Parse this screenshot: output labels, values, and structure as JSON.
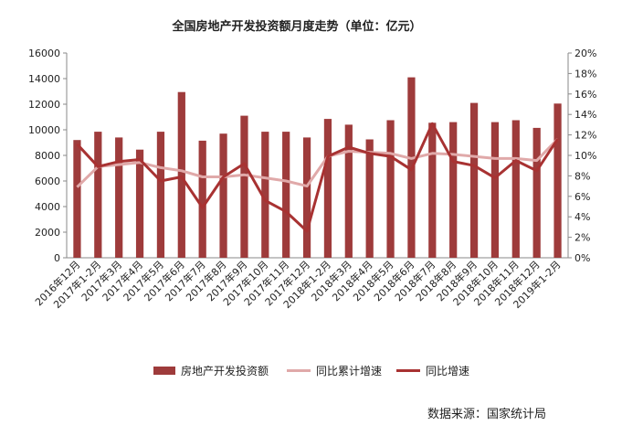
{
  "title": "全国房地产开发投资额月度走势（单位：亿元）",
  "source": "数据来源：国家统计局",
  "colors": {
    "bar": "#9e3b3b",
    "cumulative_line": "#e0a9a9",
    "yoy_line": "#a83232",
    "axis": "#888888"
  },
  "chart_data": {
    "type": "bar",
    "title": "全国房地产开发投资额月度走势（单位：亿元）",
    "categories": [
      "2016年12月",
      "2017年1-2月",
      "2017年3月",
      "2017年4月",
      "2017年5月",
      "2017年6月",
      "2017年7月",
      "2017年8月",
      "2017年9月",
      "2017年10月",
      "2017年11月",
      "2017年12月",
      "2018年1-2月",
      "2018年3月",
      "2018年4月",
      "2018年5月",
      "2018年6月",
      "2018年7月",
      "2018年8月",
      "2018年9月",
      "2018年10月",
      "2018年11月",
      "2018年12月",
      "2019年1-2月"
    ],
    "y_left": {
      "ylim": [
        0,
        16000
      ],
      "ticks": [
        0,
        2000,
        4000,
        6000,
        8000,
        10000,
        12000,
        14000,
        16000
      ]
    },
    "y_right": {
      "ylim": [
        0,
        20
      ],
      "ticks": [
        "0%",
        "2%",
        "4%",
        "6%",
        "8%",
        "10%",
        "12%",
        "14%",
        "16%",
        "18%",
        "20%"
      ]
    },
    "legend_position": "bottom",
    "grid": false,
    "series": [
      {
        "name": "房地产开发投资额",
        "type": "bar",
        "axis": "left",
        "values": [
          9200,
          9850,
          9400,
          8450,
          9850,
          12950,
          9150,
          9700,
          11100,
          9850,
          9850,
          9400,
          10850,
          10400,
          9250,
          10750,
          14100,
          10550,
          10600,
          12100,
          10600,
          10750,
          10150,
          12050
        ]
      },
      {
        "name": "同比累计增速",
        "type": "line",
        "axis": "right",
        "values": [
          6.9,
          8.9,
          9.1,
          9.3,
          8.8,
          8.5,
          7.9,
          7.9,
          8.1,
          7.8,
          7.5,
          7.0,
          9.9,
          10.4,
          10.3,
          10.2,
          9.7,
          10.2,
          10.1,
          9.9,
          9.7,
          9.7,
          9.5,
          11.6
        ]
      },
      {
        "name": "同比增速",
        "type": "line",
        "axis": "right",
        "values": [
          11.1,
          8.9,
          9.4,
          9.6,
          7.5,
          7.9,
          4.9,
          7.9,
          9.2,
          5.6,
          4.5,
          2.6,
          9.9,
          10.8,
          10.2,
          9.9,
          8.6,
          13.1,
          9.4,
          9.0,
          7.8,
          9.5,
          8.5,
          11.6
        ]
      }
    ]
  },
  "legend": {
    "bar_label": "房地产开发投资额",
    "cumulative_label": "同比累计增速",
    "yoy_label": "同比增速"
  }
}
